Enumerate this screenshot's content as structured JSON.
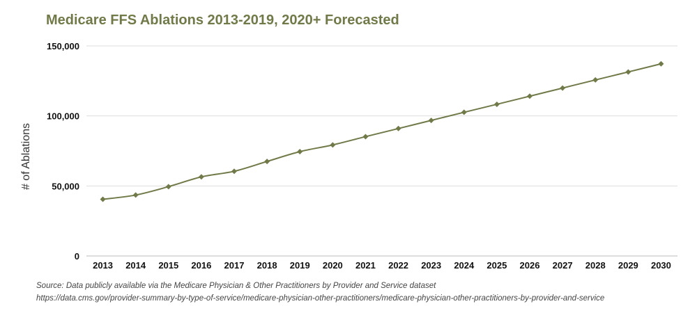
{
  "chart_data": {
    "type": "line",
    "title": "Medicare FFS Ablations 2013-2019, 2020+ Forecasted",
    "xlabel": "",
    "ylabel": "# of Ablations",
    "categories": [
      "2013",
      "2014",
      "2015",
      "2016",
      "2017",
      "2018",
      "2019",
      "2020",
      "2021",
      "2022",
      "2023",
      "2024",
      "2025",
      "2026",
      "2027",
      "2028",
      "2029",
      "2030"
    ],
    "series": [
      {
        "values": [
          40500,
          43500,
          49500,
          56500,
          60500,
          67500,
          74500,
          79300,
          85200,
          91000,
          96800,
          102600,
          108300,
          114100,
          119900,
          125700,
          131400,
          137200
        ]
      }
    ],
    "ylim": [
      0,
      150000
    ],
    "yticks": [
      0,
      50000,
      100000,
      150000
    ],
    "ytick_labels": [
      "0",
      "50,000",
      "100,000",
      "150,000"
    ],
    "grid": true,
    "legend": "none",
    "colors": {
      "series": "#707a48",
      "title": "#707a48",
      "grid": "#dddddd"
    }
  },
  "source": {
    "line1": "Source: Data publicly available via the Medicare Physician & Other Practitioners by Provider and Service dataset",
    "line2": "https://data.cms.gov/provider-summary-by-type-of-service/medicare-physician-other-practitioners/medicare-physician-other-practitioners-by-provider-and-service"
  }
}
